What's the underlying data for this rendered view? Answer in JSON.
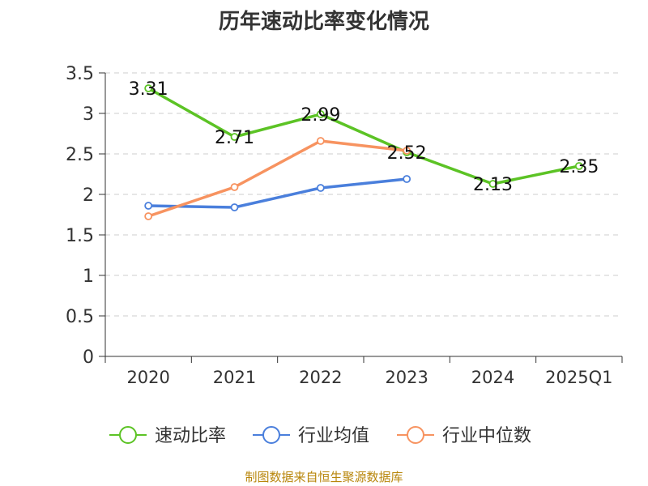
{
  "chart_data": {
    "type": "line",
    "title": "历年速动比率变化情况",
    "categories": [
      "2020",
      "2021",
      "2022",
      "2023",
      "2024",
      "2025Q1"
    ],
    "ylim": [
      0,
      3.5
    ],
    "yticks": [
      "0",
      "0.5",
      "1",
      "1.5",
      "2",
      "2.5",
      "3",
      "3.5"
    ],
    "grid": true,
    "legend": "bottom",
    "series": [
      {
        "name": "速动比率",
        "color": "#5cc325",
        "values": [
          3.31,
          2.71,
          2.99,
          2.52,
          2.13,
          2.35
        ],
        "labels": [
          "3.31",
          "2.71",
          "2.99",
          "2.52",
          "2.13",
          "2.35"
        ]
      },
      {
        "name": "行业均值",
        "color": "#4a7fdc",
        "values": [
          1.86,
          1.84,
          2.08,
          2.19,
          null,
          null
        ]
      },
      {
        "name": "行业中位数",
        "color": "#f79360",
        "values": [
          1.73,
          2.09,
          2.66,
          2.54,
          null,
          null
        ]
      }
    ]
  },
  "footer": {
    "source": "制图数据来自恒生聚源数据库"
  }
}
